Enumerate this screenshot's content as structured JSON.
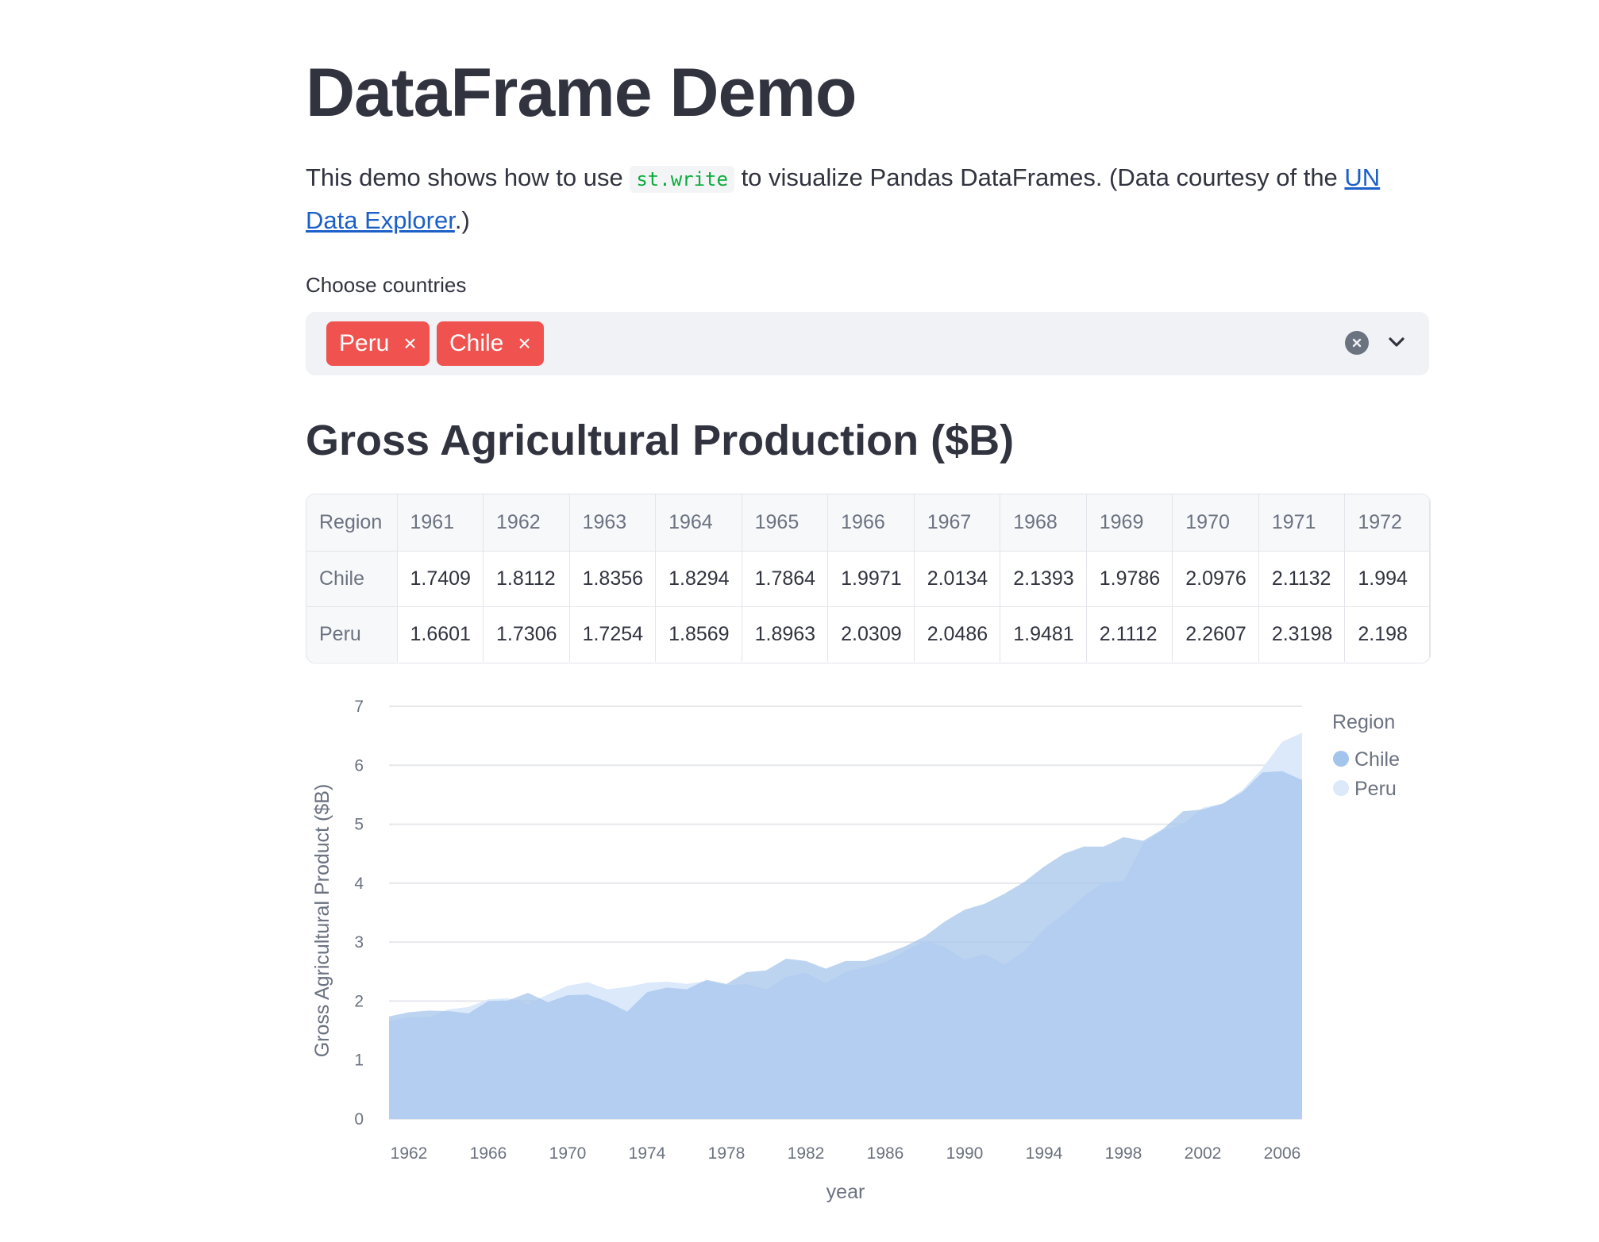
{
  "page": {
    "title": "DataFrame Demo",
    "intro_before": "This demo shows how to use ",
    "intro_code": "st.write",
    "intro_middle": " to visualize Pandas DataFrames. (Data courtesy of the ",
    "intro_link": "UN Data Explorer",
    "intro_after": ".)"
  },
  "selector": {
    "label": "Choose countries",
    "tags": [
      "Peru",
      "Chile"
    ],
    "tag_remove_glyph": "×",
    "clear_icon": "clear-circle-icon",
    "dropdown_icon": "chevron-down-icon"
  },
  "section": {
    "title": "Gross Agricultural Production ($B)"
  },
  "table": {
    "index_header": "Region",
    "columns": [
      "1961",
      "1962",
      "1963",
      "1964",
      "1965",
      "1966",
      "1967",
      "1968",
      "1969",
      "1970",
      "1971",
      "1972"
    ],
    "rows": [
      {
        "region": "Chile",
        "values": [
          "1.7409",
          "1.8112",
          "1.8356",
          "1.8294",
          "1.7864",
          "1.9971",
          "2.0134",
          "2.1393",
          "1.9786",
          "2.0976",
          "2.1132",
          "1.994"
        ]
      },
      {
        "region": "Peru",
        "values": [
          "1.6601",
          "1.7306",
          "1.7254",
          "1.8569",
          "1.8963",
          "2.0309",
          "2.0486",
          "1.9481",
          "2.1112",
          "2.2607",
          "2.3198",
          "2.198"
        ]
      }
    ]
  },
  "chart_data": {
    "type": "area",
    "xlabel": "year",
    "ylabel": "Gross Agricultural Product ($B)",
    "ylim": [
      0,
      7
    ],
    "yticks": [
      0,
      1,
      2,
      3,
      4,
      5,
      6,
      7
    ],
    "xticks": [
      1962,
      1966,
      1970,
      1974,
      1978,
      1982,
      1986,
      1990,
      1994,
      1998,
      2002,
      2006
    ],
    "xlim": [
      1961,
      2007
    ],
    "grid": true,
    "stacked": false,
    "legend_title": "Region",
    "legend_position": "top-right",
    "colors": {
      "Chile": "#a3c4ec",
      "Peru": "#dbe9fb"
    },
    "x": [
      1961,
      1962,
      1963,
      1964,
      1965,
      1966,
      1967,
      1968,
      1969,
      1970,
      1971,
      1972,
      1973,
      1974,
      1975,
      1976,
      1977,
      1978,
      1979,
      1980,
      1981,
      1982,
      1983,
      1984,
      1985,
      1986,
      1987,
      1988,
      1989,
      1990,
      1991,
      1992,
      1993,
      1994,
      1995,
      1996,
      1997,
      1998,
      1999,
      2000,
      2001,
      2002,
      2003,
      2004,
      2005,
      2006,
      2007
    ],
    "series": [
      {
        "name": "Chile",
        "values": [
          1.74,
          1.81,
          1.84,
          1.83,
          1.79,
          2.0,
          2.01,
          2.14,
          1.98,
          2.1,
          2.11,
          1.99,
          1.82,
          2.15,
          2.23,
          2.2,
          2.36,
          2.29,
          2.49,
          2.52,
          2.72,
          2.68,
          2.55,
          2.68,
          2.68,
          2.8,
          2.93,
          3.1,
          3.35,
          3.55,
          3.65,
          3.82,
          4.02,
          4.28,
          4.5,
          4.62,
          4.62,
          4.78,
          4.72,
          4.92,
          5.22,
          5.25,
          5.35,
          5.55,
          5.88,
          5.9,
          5.75
        ]
      },
      {
        "name": "Peru",
        "values": [
          1.66,
          1.73,
          1.73,
          1.86,
          1.9,
          2.03,
          2.05,
          1.95,
          2.11,
          2.26,
          2.32,
          2.2,
          2.24,
          2.31,
          2.33,
          2.29,
          2.34,
          2.27,
          2.29,
          2.2,
          2.41,
          2.48,
          2.3,
          2.5,
          2.58,
          2.66,
          2.85,
          3.02,
          2.92,
          2.7,
          2.8,
          2.62,
          2.85,
          3.22,
          3.48,
          3.78,
          4.02,
          4.03,
          4.68,
          4.9,
          5.0,
          5.28,
          5.35,
          5.58,
          5.95,
          6.4,
          6.55
        ]
      }
    ]
  }
}
